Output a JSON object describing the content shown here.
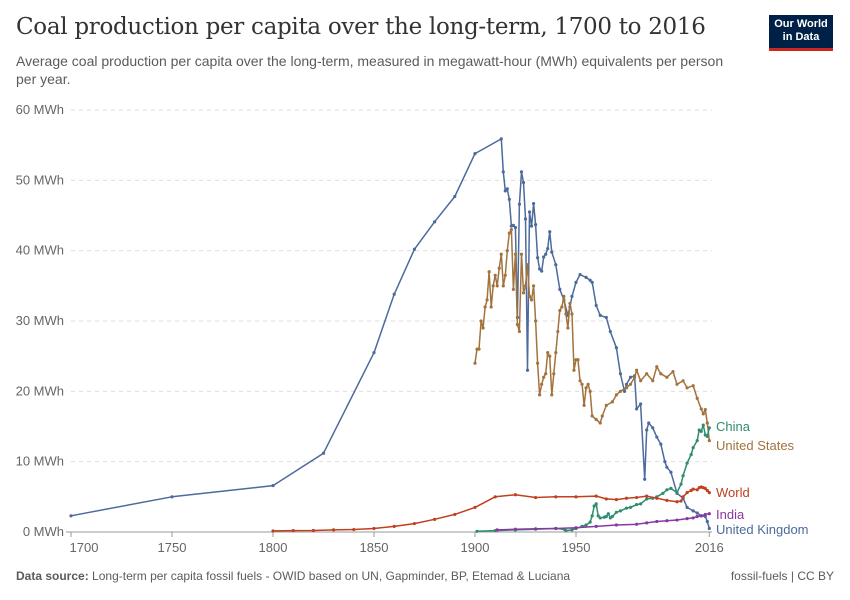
{
  "title": "Coal production per capita over the long-term, 1700 to 2016",
  "subtitle": "Average coal production per capita over the long-term, measured in megawatt-hour (MWh) equivalents per person per year.",
  "logo": {
    "line1": "Our World",
    "line2": "in Data"
  },
  "footer": {
    "source_label": "Data source:",
    "source": "Long-term per capita fossil fuels - OWID based on UN, Gapminder, BP, Etemad & Luciana",
    "license": "fossil-fuels | CC BY"
  },
  "chart_data": {
    "type": "line",
    "title": "Coal production per capita over the long-term, 1700 to 2016",
    "xlim": [
      1700,
      2016
    ],
    "ylim": [
      0,
      60
    ],
    "grid": "horizontal dashed",
    "legend": "right, inline labels",
    "x_ticks": [
      "1700",
      "1750",
      "1800",
      "1850",
      "1900",
      "1950",
      "2016"
    ],
    "y_ticks": [
      "0 MWh",
      "10 MWh",
      "20 MWh",
      "30 MWh",
      "40 MWh",
      "50 MWh",
      "60 MWh"
    ],
    "series": [
      {
        "name": "United Kingdom",
        "color": "#4c6a9c",
        "x": [
          1700,
          1750,
          1800,
          1825,
          1850,
          1860,
          1870,
          1880,
          1890,
          1900,
          1913,
          1914,
          1915,
          1916,
          1917,
          1918,
          1919,
          1920,
          1921,
          1922,
          1923,
          1924,
          1925,
          1926,
          1927,
          1928,
          1929,
          1930,
          1931,
          1932,
          1933,
          1934,
          1935,
          1936,
          1937,
          1938,
          1940,
          1942,
          1944,
          1946,
          1947,
          1948,
          1950,
          1952,
          1955,
          1957,
          1958,
          1960,
          1962,
          1965,
          1967,
          1970,
          1972,
          1974,
          1975,
          1977,
          1979,
          1980,
          1982,
          1984,
          1985,
          1986,
          1988,
          1990,
          1992,
          1994,
          1995,
          1997,
          2000,
          2003,
          2005,
          2008,
          2010,
          2012,
          2014,
          2015,
          2016
        ],
        "y": [
          2.3,
          5.0,
          6.6,
          11.2,
          25.5,
          33.8,
          40.2,
          44.1,
          47.7,
          53.8,
          55.9,
          51.2,
          48.5,
          48.8,
          47.3,
          43.5,
          43.6,
          43.3,
          30.5,
          46.6,
          51.2,
          49.7,
          44.5,
          23.0,
          45.5,
          43.5,
          46.7,
          43.7,
          39.0,
          37.4,
          37.1,
          39.1,
          39.5,
          40.3,
          42.7,
          39.8,
          38.0,
          34.5,
          33.0,
          30.8,
          32.0,
          33.5,
          35.5,
          36.6,
          36.2,
          35.8,
          35.5,
          32.2,
          30.8,
          30.5,
          28.5,
          26.2,
          22.5,
          20.0,
          21.0,
          22.0,
          22.2,
          17.5,
          18.2,
          7.5,
          14.5,
          15.5,
          14.8,
          13.5,
          12.5,
          10.0,
          9.2,
          8.5,
          5.5,
          4.8,
          3.5,
          3.0,
          2.7,
          2.3,
          2.2,
          1.5,
          0.5
        ]
      },
      {
        "name": "United States",
        "color": "#a2733d",
        "x": [
          1900,
          1901,
          1902,
          1903,
          1904,
          1905,
          1906,
          1907,
          1908,
          1909,
          1910,
          1911,
          1912,
          1913,
          1914,
          1915,
          1916,
          1917,
          1918,
          1919,
          1920,
          1921,
          1922,
          1923,
          1924,
          1925,
          1926,
          1927,
          1928,
          1929,
          1930,
          1931,
          1932,
          1933,
          1934,
          1935,
          1936,
          1937,
          1938,
          1939,
          1940,
          1941,
          1942,
          1943,
          1944,
          1945,
          1946,
          1947,
          1948,
          1949,
          1950,
          1951,
          1952,
          1953,
          1954,
          1955,
          1956,
          1957,
          1958,
          1960,
          1962,
          1963,
          1965,
          1968,
          1970,
          1972,
          1975,
          1977,
          1979,
          1980,
          1982,
          1985,
          1988,
          1990,
          1992,
          1995,
          1998,
          2000,
          2003,
          2005,
          2008,
          2010,
          2012,
          2013,
          2014,
          2015,
          2016
        ],
        "y": [
          24,
          26,
          26,
          30,
          29,
          32,
          33,
          37,
          32,
          35,
          36.5,
          35,
          37.5,
          39.5,
          35,
          36.5,
          40,
          42.5,
          43,
          34.5,
          39.5,
          29.5,
          28.5,
          39.5,
          34,
          35,
          38,
          33.5,
          33,
          35,
          30,
          24,
          19.5,
          21,
          22,
          22.5,
          25.5,
          25,
          19.5,
          22.5,
          25.5,
          28.5,
          31.5,
          32,
          33.5,
          31,
          29,
          32.5,
          31,
          23,
          24.5,
          24.5,
          21.5,
          21,
          18,
          20.5,
          21,
          20,
          16.5,
          16,
          15.5,
          16.5,
          18,
          18.5,
          19.5,
          20,
          20.5,
          21,
          22,
          23,
          21.5,
          22.5,
          21.5,
          23.5,
          22.5,
          22,
          22.8,
          21,
          21.5,
          20.5,
          20.8,
          19,
          17.5,
          16.8,
          17.4,
          15.5,
          13
        ]
      },
      {
        "name": "China",
        "color": "#2e8d6c",
        "x": [
          1901,
          1910,
          1920,
          1930,
          1940,
          1944,
          1945,
          1948,
          1950,
          1953,
          1955,
          1957,
          1958,
          1959,
          1960,
          1961,
          1962,
          1964,
          1965,
          1966,
          1967,
          1968,
          1970,
          1972,
          1975,
          1977,
          1980,
          1982,
          1985,
          1988,
          1990,
          1993,
          1995,
          1997,
          2000,
          2002,
          2003,
          2005,
          2007,
          2008,
          2010,
          2011,
          2012,
          2013,
          2014,
          2015,
          2016
        ],
        "y": [
          0.1,
          0.2,
          0.3,
          0.4,
          0.5,
          0.4,
          0.2,
          0.3,
          0.5,
          0.8,
          1.0,
          1.4,
          2.3,
          3.7,
          4.0,
          2.3,
          2.0,
          2.1,
          2.2,
          2.6,
          2.0,
          2.2,
          2.8,
          3.0,
          3.4,
          3.5,
          3.9,
          4.0,
          4.7,
          4.8,
          5.0,
          5.5,
          6.0,
          6.2,
          5.6,
          6.8,
          8.0,
          9.8,
          11.0,
          12.0,
          13.0,
          14.5,
          14.3,
          15.2,
          13.8,
          13.6,
          14.8
        ]
      },
      {
        "name": "World",
        "color": "#c0401f",
        "x": [
          1800,
          1810,
          1820,
          1830,
          1840,
          1850,
          1860,
          1870,
          1880,
          1890,
          1900,
          1910,
          1920,
          1930,
          1940,
          1950,
          1960,
          1965,
          1970,
          1975,
          1980,
          1985,
          1990,
          1995,
          2000,
          2002,
          2003,
          2005,
          2007,
          2008,
          2010,
          2011,
          2012,
          2013,
          2014,
          2015,
          2016
        ],
        "y": [
          0.15,
          0.2,
          0.22,
          0.3,
          0.35,
          0.5,
          0.8,
          1.2,
          1.8,
          2.5,
          3.5,
          5.0,
          5.3,
          4.9,
          5.0,
          5.0,
          5.1,
          4.7,
          4.6,
          4.8,
          4.9,
          5.1,
          4.8,
          4.5,
          4.3,
          4.4,
          5.0,
          5.6,
          5.9,
          6.1,
          6.0,
          6.3,
          6.4,
          6.3,
          6.2,
          5.9,
          5.6
        ]
      },
      {
        "name": "India",
        "color": "#883aa0",
        "x": [
          1911,
          1920,
          1930,
          1940,
          1950,
          1960,
          1970,
          1980,
          1985,
          1990,
          1995,
          2000,
          2005,
          2008,
          2010,
          2012,
          2014,
          2016
        ],
        "y": [
          0.3,
          0.4,
          0.45,
          0.5,
          0.6,
          0.8,
          1.0,
          1.1,
          1.3,
          1.5,
          1.6,
          1.7,
          1.9,
          2.0,
          2.2,
          2.3,
          2.5,
          2.6
        ]
      }
    ]
  }
}
